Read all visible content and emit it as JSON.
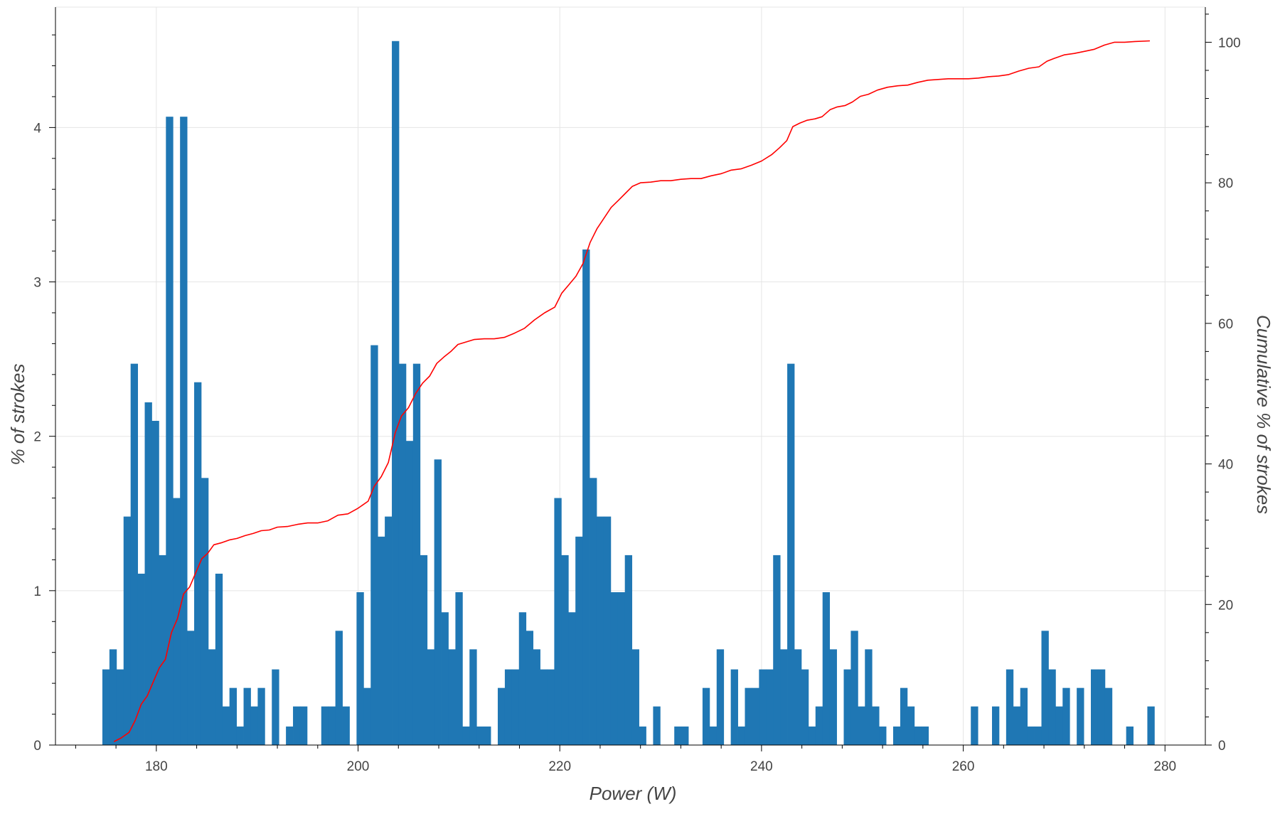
{
  "chart_data": {
    "type": "bar",
    "title": "",
    "xlabel": "Power (W)",
    "ylabel": "% of strokes",
    "y2label": "Cumulative % of strokes",
    "xlim": [
      170,
      284
    ],
    "ylim": [
      0,
      4.78
    ],
    "y2lim": [
      0,
      105
    ],
    "x_ticks": [
      180,
      200,
      220,
      240,
      260,
      280
    ],
    "y_ticks": [
      0,
      1,
      2,
      3,
      4
    ],
    "y2_ticks": [
      0,
      20,
      40,
      60,
      80,
      100
    ],
    "grid": true,
    "legend": "none",
    "bar_width": 0.7,
    "colors": {
      "bars": "#1f77b4",
      "cumulative_line": "#ff0000",
      "grid": "#e5e5e5",
      "axis": "#000000"
    },
    "histogram": {
      "name": "% of strokes",
      "bins": [
        [
          175.0,
          0.49
        ],
        [
          175.7,
          0.62
        ],
        [
          176.4,
          0.49
        ],
        [
          177.1,
          1.48
        ],
        [
          177.8,
          2.47
        ],
        [
          178.5,
          1.11
        ],
        [
          179.2,
          2.22
        ],
        [
          179.9,
          2.1
        ],
        [
          180.6,
          1.23
        ],
        [
          181.3,
          4.07
        ],
        [
          182.0,
          1.6
        ],
        [
          182.7,
          4.07
        ],
        [
          183.4,
          0.74
        ],
        [
          184.1,
          2.35
        ],
        [
          184.8,
          1.73
        ],
        [
          185.5,
          0.62
        ],
        [
          186.2,
          1.11
        ],
        [
          186.9,
          0.25
        ],
        [
          187.6,
          0.37
        ],
        [
          188.3,
          0.12
        ],
        [
          189.0,
          0.37
        ],
        [
          189.7,
          0.25
        ],
        [
          190.4,
          0.37
        ],
        [
          191.1,
          0.0
        ],
        [
          191.8,
          0.49
        ],
        [
          192.5,
          0.0
        ],
        [
          193.2,
          0.12
        ],
        [
          193.9,
          0.25
        ],
        [
          194.6,
          0.25
        ],
        [
          195.3,
          0.0
        ],
        [
          196.0,
          0.0
        ],
        [
          196.7,
          0.25
        ],
        [
          197.4,
          0.25
        ],
        [
          198.1,
          0.74
        ],
        [
          198.8,
          0.25
        ],
        [
          199.5,
          0.0
        ],
        [
          200.2,
          0.99
        ],
        [
          200.9,
          0.37
        ],
        [
          201.6,
          2.59
        ],
        [
          202.3,
          1.35
        ],
        [
          203.0,
          1.48
        ],
        [
          203.7,
          4.56
        ],
        [
          204.4,
          2.47
        ],
        [
          205.1,
          1.97
        ],
        [
          205.8,
          2.47
        ],
        [
          206.5,
          1.23
        ],
        [
          207.2,
          0.62
        ],
        [
          207.9,
          1.85
        ],
        [
          208.6,
          0.86
        ],
        [
          209.3,
          0.62
        ],
        [
          210.0,
          0.99
        ],
        [
          210.7,
          0.12
        ],
        [
          211.4,
          0.62
        ],
        [
          212.1,
          0.12
        ],
        [
          212.8,
          0.12
        ],
        [
          213.5,
          0.0
        ],
        [
          214.2,
          0.37
        ],
        [
          214.9,
          0.49
        ],
        [
          215.6,
          0.49
        ],
        [
          216.3,
          0.86
        ],
        [
          217.0,
          0.74
        ],
        [
          217.7,
          0.62
        ],
        [
          218.4,
          0.49
        ],
        [
          219.1,
          0.49
        ],
        [
          219.8,
          1.6
        ],
        [
          220.5,
          1.23
        ],
        [
          221.2,
          0.86
        ],
        [
          221.9,
          1.35
        ],
        [
          222.6,
          3.21
        ],
        [
          223.3,
          1.73
        ],
        [
          224.0,
          1.48
        ],
        [
          224.7,
          1.48
        ],
        [
          225.4,
          0.99
        ],
        [
          226.1,
          0.99
        ],
        [
          226.8,
          1.23
        ],
        [
          227.5,
          0.62
        ],
        [
          228.2,
          0.12
        ],
        [
          228.9,
          0.0
        ],
        [
          229.6,
          0.25
        ],
        [
          230.3,
          0.0
        ],
        [
          231.0,
          0.0
        ],
        [
          231.7,
          0.12
        ],
        [
          232.4,
          0.12
        ],
        [
          233.1,
          0.0
        ],
        [
          233.8,
          0.0
        ],
        [
          234.5,
          0.37
        ],
        [
          235.2,
          0.12
        ],
        [
          235.9,
          0.62
        ],
        [
          236.6,
          0.0
        ],
        [
          237.3,
          0.49
        ],
        [
          238.0,
          0.12
        ],
        [
          238.7,
          0.37
        ],
        [
          239.4,
          0.37
        ],
        [
          240.1,
          0.49
        ],
        [
          240.8,
          0.49
        ],
        [
          241.5,
          1.23
        ],
        [
          242.2,
          0.62
        ],
        [
          242.9,
          2.47
        ],
        [
          243.6,
          0.62
        ],
        [
          244.3,
          0.49
        ],
        [
          245.0,
          0.12
        ],
        [
          245.7,
          0.25
        ],
        [
          246.4,
          0.99
        ],
        [
          247.1,
          0.62
        ],
        [
          247.8,
          0.0
        ],
        [
          248.5,
          0.49
        ],
        [
          249.2,
          0.74
        ],
        [
          249.9,
          0.25
        ],
        [
          250.6,
          0.62
        ],
        [
          251.3,
          0.25
        ],
        [
          252.0,
          0.12
        ],
        [
          252.7,
          0.0
        ],
        [
          253.4,
          0.12
        ],
        [
          254.1,
          0.37
        ],
        [
          254.8,
          0.25
        ],
        [
          255.5,
          0.12
        ],
        [
          256.2,
          0.12
        ],
        [
          256.9,
          0.0
        ],
        [
          257.6,
          0.0
        ],
        [
          258.3,
          0.0
        ],
        [
          259.0,
          0.0
        ],
        [
          259.7,
          0.0
        ],
        [
          260.4,
          0.0
        ],
        [
          261.1,
          0.25
        ],
        [
          261.8,
          0.0
        ],
        [
          262.5,
          0.0
        ],
        [
          263.2,
          0.25
        ],
        [
          263.9,
          0.0
        ],
        [
          264.6,
          0.49
        ],
        [
          265.3,
          0.25
        ],
        [
          266.0,
          0.37
        ],
        [
          266.7,
          0.12
        ],
        [
          267.4,
          0.12
        ],
        [
          268.1,
          0.74
        ],
        [
          268.8,
          0.49
        ],
        [
          269.5,
          0.25
        ],
        [
          270.2,
          0.37
        ],
        [
          270.9,
          0.0
        ],
        [
          271.6,
          0.37
        ],
        [
          272.3,
          0.0
        ],
        [
          273.0,
          0.49
        ],
        [
          273.7,
          0.49
        ],
        [
          274.4,
          0.37
        ],
        [
          275.1,
          0.0
        ],
        [
          275.8,
          0.0
        ],
        [
          276.5,
          0.12
        ],
        [
          277.2,
          0.0
        ],
        [
          277.9,
          0.0
        ],
        [
          278.6,
          0.25
        ]
      ]
    },
    "cumulative": {
      "name": "Cumulative % of strokes",
      "points": [
        [
          175.8,
          0.5
        ],
        [
          176.5,
          1.0
        ],
        [
          177.3,
          1.8
        ],
        [
          177.9,
          3.5
        ],
        [
          178.5,
          5.8
        ],
        [
          179.1,
          7.0
        ],
        [
          179.7,
          9.0
        ],
        [
          180.3,
          11.0
        ],
        [
          180.9,
          12.2
        ],
        [
          181.5,
          16.0
        ],
        [
          182.1,
          18.0
        ],
        [
          182.7,
          21.5
        ],
        [
          183.3,
          22.5
        ],
        [
          183.9,
          24.5
        ],
        [
          184.5,
          26.5
        ],
        [
          185.1,
          27.3
        ],
        [
          185.7,
          28.5
        ],
        [
          186.5,
          28.8
        ],
        [
          187.3,
          29.2
        ],
        [
          188.0,
          29.4
        ],
        [
          188.8,
          29.8
        ],
        [
          189.6,
          30.1
        ],
        [
          190.4,
          30.5
        ],
        [
          191.2,
          30.6
        ],
        [
          192.0,
          31.0
        ],
        [
          193.0,
          31.1
        ],
        [
          194.0,
          31.4
        ],
        [
          195.0,
          31.6
        ],
        [
          196.0,
          31.6
        ],
        [
          197.0,
          31.9
        ],
        [
          198.0,
          32.7
        ],
        [
          199.0,
          32.9
        ],
        [
          200.0,
          33.7
        ],
        [
          201.0,
          34.7
        ],
        [
          201.6,
          36.8
        ],
        [
          202.3,
          38.2
        ],
        [
          203.0,
          40.2
        ],
        [
          203.7,
          44.5
        ],
        [
          204.3,
          46.8
        ],
        [
          205.0,
          48.0
        ],
        [
          205.7,
          50.0
        ],
        [
          206.4,
          51.5
        ],
        [
          207.1,
          52.5
        ],
        [
          207.8,
          54.3
        ],
        [
          208.5,
          55.2
        ],
        [
          209.2,
          56.0
        ],
        [
          209.9,
          57.0
        ],
        [
          210.6,
          57.3
        ],
        [
          211.5,
          57.7
        ],
        [
          212.5,
          57.8
        ],
        [
          213.5,
          57.8
        ],
        [
          214.5,
          58.0
        ],
        [
          215.5,
          58.6
        ],
        [
          216.5,
          59.3
        ],
        [
          217.5,
          60.5
        ],
        [
          218.5,
          61.5
        ],
        [
          219.5,
          62.3
        ],
        [
          220.2,
          64.3
        ],
        [
          220.9,
          65.5
        ],
        [
          221.6,
          66.7
        ],
        [
          222.3,
          68.5
        ],
        [
          223.0,
          71.5
        ],
        [
          223.7,
          73.5
        ],
        [
          224.4,
          75.0
        ],
        [
          225.1,
          76.5
        ],
        [
          225.8,
          77.5
        ],
        [
          226.5,
          78.5
        ],
        [
          227.2,
          79.5
        ],
        [
          228.0,
          80.0
        ],
        [
          229.0,
          80.1
        ],
        [
          230.0,
          80.3
        ],
        [
          231.0,
          80.3
        ],
        [
          232.0,
          80.5
        ],
        [
          233.0,
          80.6
        ],
        [
          234.0,
          80.6
        ],
        [
          235.0,
          81.0
        ],
        [
          236.0,
          81.3
        ],
        [
          237.0,
          81.8
        ],
        [
          238.0,
          82.0
        ],
        [
          239.0,
          82.5
        ],
        [
          240.0,
          83.1
        ],
        [
          241.0,
          84.0
        ],
        [
          241.8,
          85.0
        ],
        [
          242.5,
          86.0
        ],
        [
          243.1,
          88.0
        ],
        [
          243.8,
          88.5
        ],
        [
          244.5,
          88.9
        ],
        [
          245.3,
          89.1
        ],
        [
          246.0,
          89.4
        ],
        [
          246.8,
          90.4
        ],
        [
          247.5,
          90.8
        ],
        [
          248.3,
          91.0
        ],
        [
          249.0,
          91.5
        ],
        [
          249.8,
          92.3
        ],
        [
          250.6,
          92.6
        ],
        [
          251.5,
          93.2
        ],
        [
          252.5,
          93.6
        ],
        [
          253.5,
          93.8
        ],
        [
          254.5,
          93.9
        ],
        [
          255.5,
          94.3
        ],
        [
          256.5,
          94.6
        ],
        [
          257.5,
          94.7
        ],
        [
          258.5,
          94.8
        ],
        [
          259.5,
          94.8
        ],
        [
          260.5,
          94.8
        ],
        [
          261.5,
          94.9
        ],
        [
          262.5,
          95.1
        ],
        [
          263.5,
          95.2
        ],
        [
          264.5,
          95.4
        ],
        [
          265.5,
          95.9
        ],
        [
          266.5,
          96.3
        ],
        [
          267.5,
          96.5
        ],
        [
          268.3,
          97.3
        ],
        [
          269.0,
          97.7
        ],
        [
          270.0,
          98.2
        ],
        [
          271.0,
          98.4
        ],
        [
          272.0,
          98.7
        ],
        [
          273.0,
          99.0
        ],
        [
          274.0,
          99.6
        ],
        [
          275.0,
          100.0
        ],
        [
          276.0,
          100.0
        ],
        [
          277.0,
          100.1
        ],
        [
          278.5,
          100.2
        ]
      ]
    }
  }
}
